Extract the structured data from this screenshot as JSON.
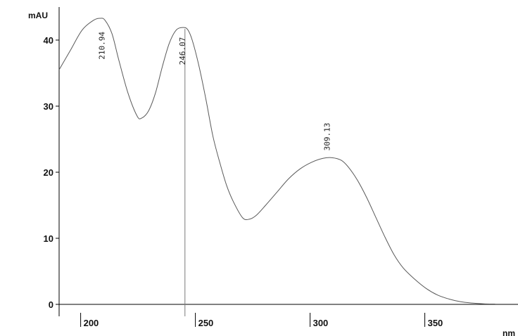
{
  "chart_data": {
    "type": "line",
    "title": "",
    "xlabel": "nm",
    "ylabel": "mAU",
    "xlim": [
      190,
      390
    ],
    "ylim": [
      0,
      45
    ],
    "x_ticks": [
      200,
      250,
      300,
      350
    ],
    "x_tick_labels": [
      "200",
      "250",
      "300",
      "350"
    ],
    "y_ticks": [
      0,
      10,
      20,
      30,
      40
    ],
    "y_tick_labels": [
      "0",
      "10",
      "20",
      "30",
      "40"
    ],
    "grid": false,
    "legend": "none",
    "series": [
      {
        "x": [
          190,
          195,
          200,
          205,
          208,
          210,
          213,
          216,
          220,
          224,
          226,
          229,
          232,
          235,
          238,
          241,
          244,
          246,
          248,
          251,
          254,
          257,
          260,
          263,
          266,
          270,
          273,
          276,
          280,
          285,
          290,
          295,
          300,
          305,
          309,
          313,
          316,
          320,
          324,
          328,
          332,
          336,
          340,
          345,
          350,
          355,
          360,
          365,
          370,
          375,
          380
        ],
        "y": [
          35.5,
          38.5,
          41.5,
          43.0,
          43.3,
          43.0,
          41.0,
          37.0,
          32.0,
          28.5,
          28.2,
          29.3,
          32.0,
          36.0,
          39.5,
          41.5,
          41.9,
          41.6,
          40.0,
          36.0,
          31.0,
          25.5,
          21.5,
          18.0,
          15.5,
          13.1,
          12.9,
          13.5,
          15.0,
          17.0,
          19.0,
          20.5,
          21.5,
          22.1,
          22.2,
          21.8,
          20.8,
          18.8,
          16.2,
          13.2,
          10.2,
          7.5,
          5.5,
          3.8,
          2.4,
          1.4,
          0.8,
          0.4,
          0.2,
          0.08,
          0.05
        ]
      }
    ],
    "peaks": [
      {
        "x": 210.94,
        "label": "210.94"
      },
      {
        "x": 246.07,
        "label": "246.07"
      },
      {
        "x": 309.13,
        "label": "309.13"
      }
    ],
    "marker_x": 246.07,
    "colors": {
      "trace": "#5a5a5a",
      "axis": "#000000",
      "marker": "#7a7a7a",
      "text": "#111111"
    }
  }
}
